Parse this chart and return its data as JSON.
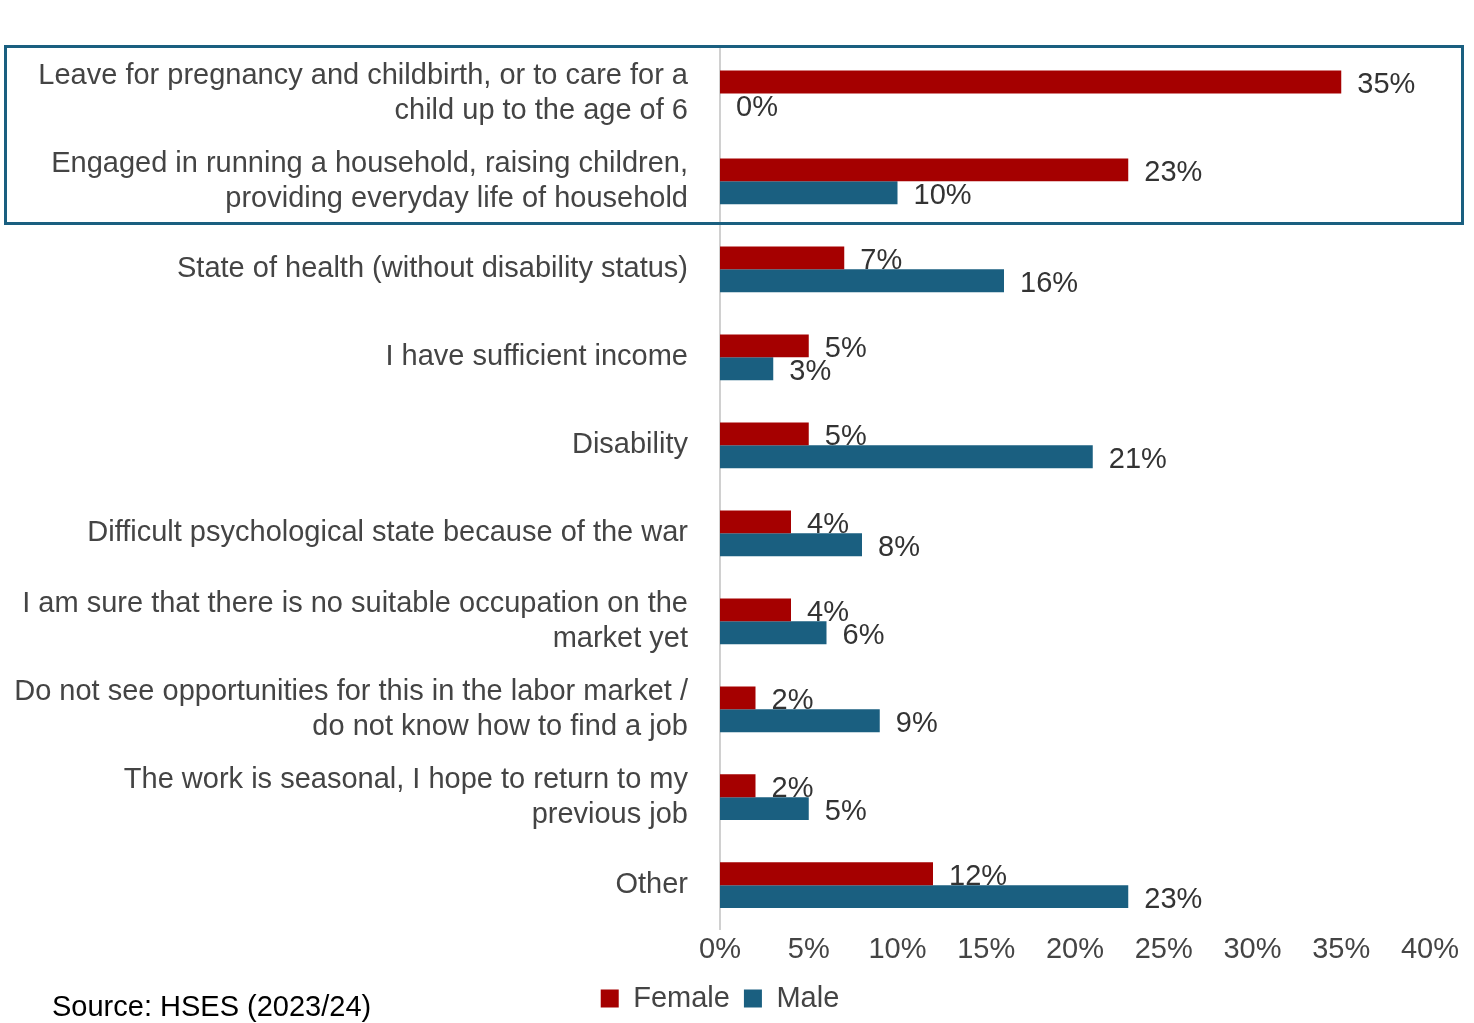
{
  "chart_data": {
    "type": "bar",
    "orientation": "horizontal",
    "categories": [
      "Leave for pregnancy and childbirth, or to care for a child up to the age of 6",
      "Engaged in running a household, raising children, providing everyday life of household",
      "State of health (without disability status)",
      "I have sufficient income",
      "Disability",
      "Difficult psychological state because of the war",
      "I am sure that there is no suitable occupation on the market yet",
      "Do not see opportunities for this in the labor market / do not know how to find a job",
      "The work is seasonal, I hope to return to my previous job",
      "Other"
    ],
    "series": [
      {
        "name": "Female",
        "color": "#a50000",
        "values": [
          35,
          23,
          7,
          5,
          5,
          4,
          4,
          2,
          2,
          12
        ],
        "value_labels": [
          "35%",
          "23%",
          "7%",
          "5%",
          "5%",
          "4%",
          "4%",
          "2%",
          "2%",
          "12%"
        ]
      },
      {
        "name": "Male",
        "color": "#1a5f80",
        "values": [
          0,
          10,
          16,
          3,
          21,
          8,
          6,
          9,
          5,
          23
        ],
        "value_labels": [
          "0%",
          "10%",
          "16%",
          "3%",
          "21%",
          "8%",
          "6%",
          "9%",
          "5%",
          "23%"
        ]
      }
    ],
    "xlim": [
      0,
      40
    ],
    "xticks": [
      {
        "value": 0,
        "label": "0%"
      },
      {
        "value": 5,
        "label": "5%"
      },
      {
        "value": 10,
        "label": "10%"
      },
      {
        "value": 15,
        "label": "15%"
      },
      {
        "value": 20,
        "label": "20%"
      },
      {
        "value": 25,
        "label": "25%"
      },
      {
        "value": 30,
        "label": "30%"
      },
      {
        "value": 35,
        "label": "35%"
      },
      {
        "value": 40,
        "label": "40%"
      }
    ],
    "grid": false,
    "legend": "bottom",
    "annotations": [
      "Source: HSES (2023/24)"
    ]
  }
}
